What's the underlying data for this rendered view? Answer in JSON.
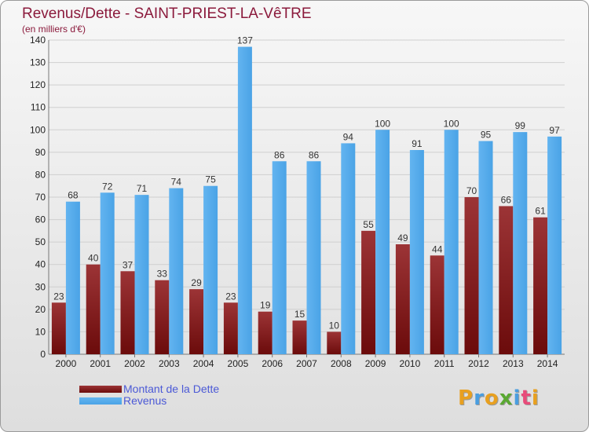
{
  "chart_data": {
    "type": "bar",
    "title": "Revenus/Dette - SAINT-PRIEST-LA-VêTRE",
    "subtitle": "(en milliers d'€)",
    "xlabel": "",
    "ylabel": "",
    "ylim": [
      0,
      140
    ],
    "yticks": [
      "0",
      "10",
      "20",
      "30",
      "40",
      "50",
      "60",
      "70",
      "80",
      "90",
      "100",
      "110",
      "120",
      "130",
      "140"
    ],
    "grid": true,
    "legend_position": "bottom-left",
    "categories": [
      "2000",
      "2001",
      "2002",
      "2003",
      "2004",
      "2005",
      "2006",
      "2007",
      "2008",
      "2009",
      "2010",
      "2011",
      "2012",
      "2013",
      "2014"
    ],
    "series": [
      {
        "name": "Montant de la Dette",
        "color": "#6b0b0b",
        "values": [
          23,
          40,
          37,
          33,
          29,
          23,
          19,
          15,
          10,
          55,
          49,
          44,
          70,
          66,
          61
        ]
      },
      {
        "name": "Revenus",
        "color": "#4aa3e6",
        "values": [
          68,
          72,
          71,
          74,
          75,
          137,
          86,
          86,
          94,
          100,
          91,
          100,
          95,
          99,
          97
        ]
      }
    ]
  },
  "brand": {
    "letters": [
      "P",
      "r",
      "o",
      "x",
      "i",
      "t",
      "i"
    ],
    "colors": [
      "#e8a020",
      "#4a9ee0",
      "#e8a020",
      "#5aa832",
      "#4a9ee0",
      "#e84b7a",
      "#e8a020"
    ]
  }
}
